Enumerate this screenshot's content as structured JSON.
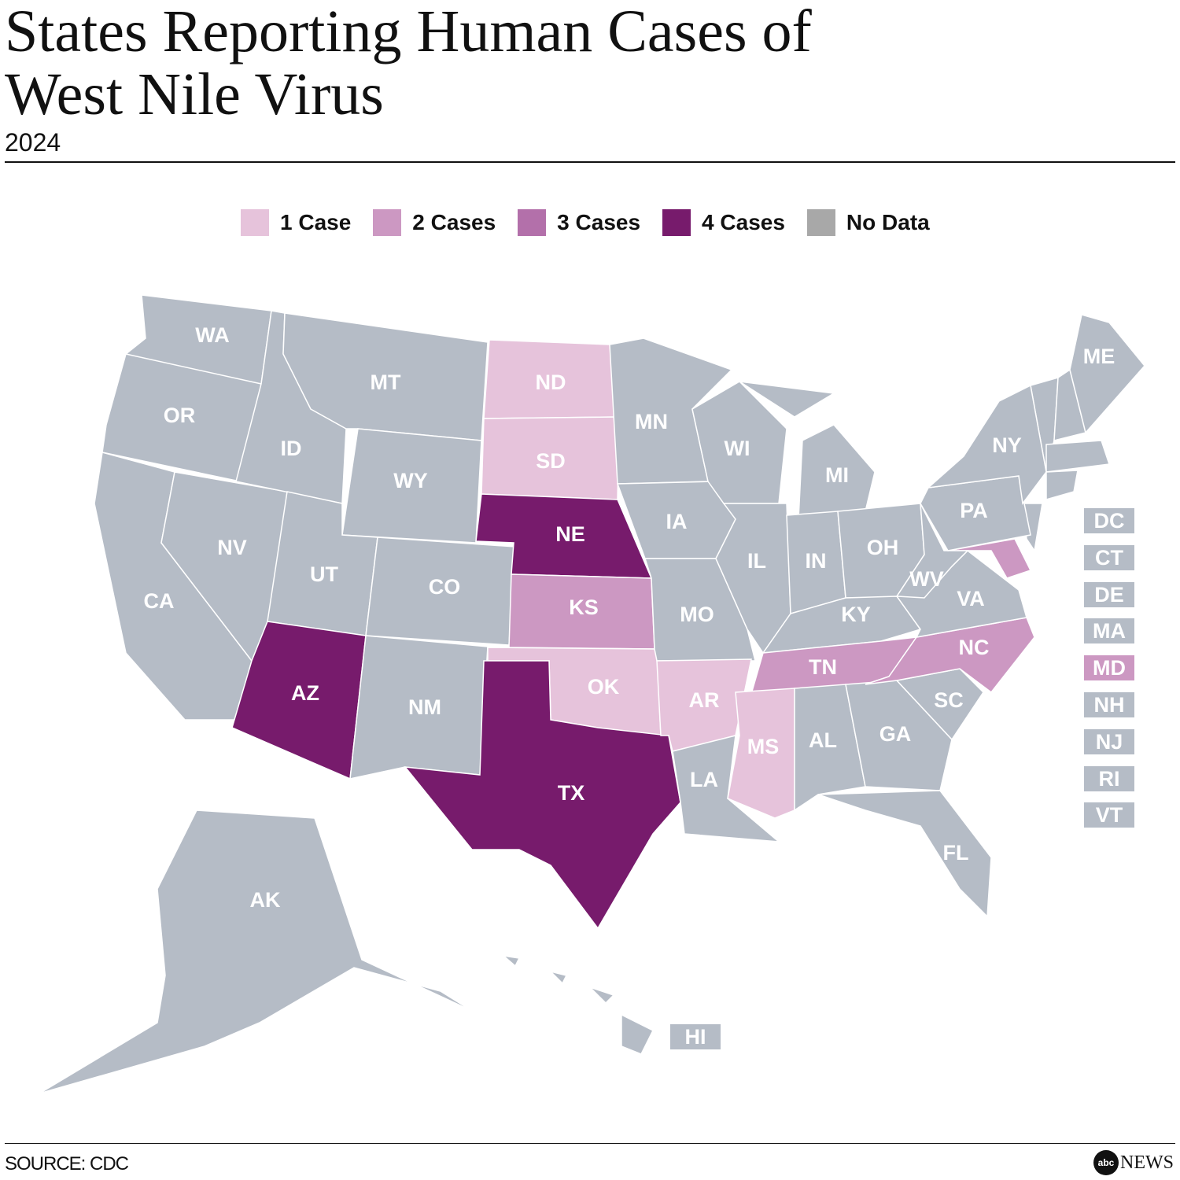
{
  "title": "States Reporting Human Cases of West Nile Virus",
  "subtitle": "2024",
  "legend": [
    {
      "label": "1 Case",
      "color": "#e6c3db"
    },
    {
      "label": "2 Cases",
      "color": "#cc98c2"
    },
    {
      "label": "3 Cases",
      "color": "#b370aa"
    },
    {
      "label": "4 Cases",
      "color": "#771b6c"
    },
    {
      "label": "No Data",
      "color": "#a8a8a8"
    }
  ],
  "no_data_map_color": "#b5bcc6",
  "states": [
    {
      "abbr": "WA",
      "cases": null
    },
    {
      "abbr": "OR",
      "cases": null
    },
    {
      "abbr": "CA",
      "cases": null
    },
    {
      "abbr": "NV",
      "cases": null
    },
    {
      "abbr": "ID",
      "cases": null
    },
    {
      "abbr": "MT",
      "cases": null
    },
    {
      "abbr": "WY",
      "cases": null
    },
    {
      "abbr": "UT",
      "cases": null
    },
    {
      "abbr": "CO",
      "cases": null
    },
    {
      "abbr": "AZ",
      "cases": 4
    },
    {
      "abbr": "NM",
      "cases": null
    },
    {
      "abbr": "ND",
      "cases": 1
    },
    {
      "abbr": "SD",
      "cases": 1
    },
    {
      "abbr": "NE",
      "cases": 4
    },
    {
      "abbr": "KS",
      "cases": 2
    },
    {
      "abbr": "OK",
      "cases": 1
    },
    {
      "abbr": "TX",
      "cases": 4
    },
    {
      "abbr": "MN",
      "cases": null
    },
    {
      "abbr": "IA",
      "cases": null
    },
    {
      "abbr": "MO",
      "cases": null
    },
    {
      "abbr": "AR",
      "cases": 1
    },
    {
      "abbr": "LA",
      "cases": null
    },
    {
      "abbr": "WI",
      "cases": null
    },
    {
      "abbr": "IL",
      "cases": null
    },
    {
      "abbr": "MI",
      "cases": null
    },
    {
      "abbr": "IN",
      "cases": null
    },
    {
      "abbr": "OH",
      "cases": null
    },
    {
      "abbr": "KY",
      "cases": null
    },
    {
      "abbr": "TN",
      "cases": 2
    },
    {
      "abbr": "MS",
      "cases": 1
    },
    {
      "abbr": "AL",
      "cases": null
    },
    {
      "abbr": "GA",
      "cases": null
    },
    {
      "abbr": "FL",
      "cases": null
    },
    {
      "abbr": "SC",
      "cases": null
    },
    {
      "abbr": "NC",
      "cases": 2
    },
    {
      "abbr": "VA",
      "cases": null
    },
    {
      "abbr": "WV",
      "cases": null
    },
    {
      "abbr": "PA",
      "cases": null
    },
    {
      "abbr": "NY",
      "cases": null
    },
    {
      "abbr": "ME",
      "cases": null
    },
    {
      "abbr": "AK",
      "cases": null
    }
  ],
  "small_states": [
    {
      "abbr": "DC",
      "cases": null
    },
    {
      "abbr": "CT",
      "cases": null
    },
    {
      "abbr": "DE",
      "cases": null
    },
    {
      "abbr": "MA",
      "cases": null
    },
    {
      "abbr": "MD",
      "cases": 2
    },
    {
      "abbr": "NH",
      "cases": null
    },
    {
      "abbr": "NJ",
      "cases": null
    },
    {
      "abbr": "RI",
      "cases": null
    },
    {
      "abbr": "VT",
      "cases": null
    }
  ],
  "hawaii": {
    "abbr": "HI",
    "cases": null
  },
  "source": "SOURCE: CDC",
  "logo": {
    "mark": "abc",
    "text": "NEWS"
  }
}
